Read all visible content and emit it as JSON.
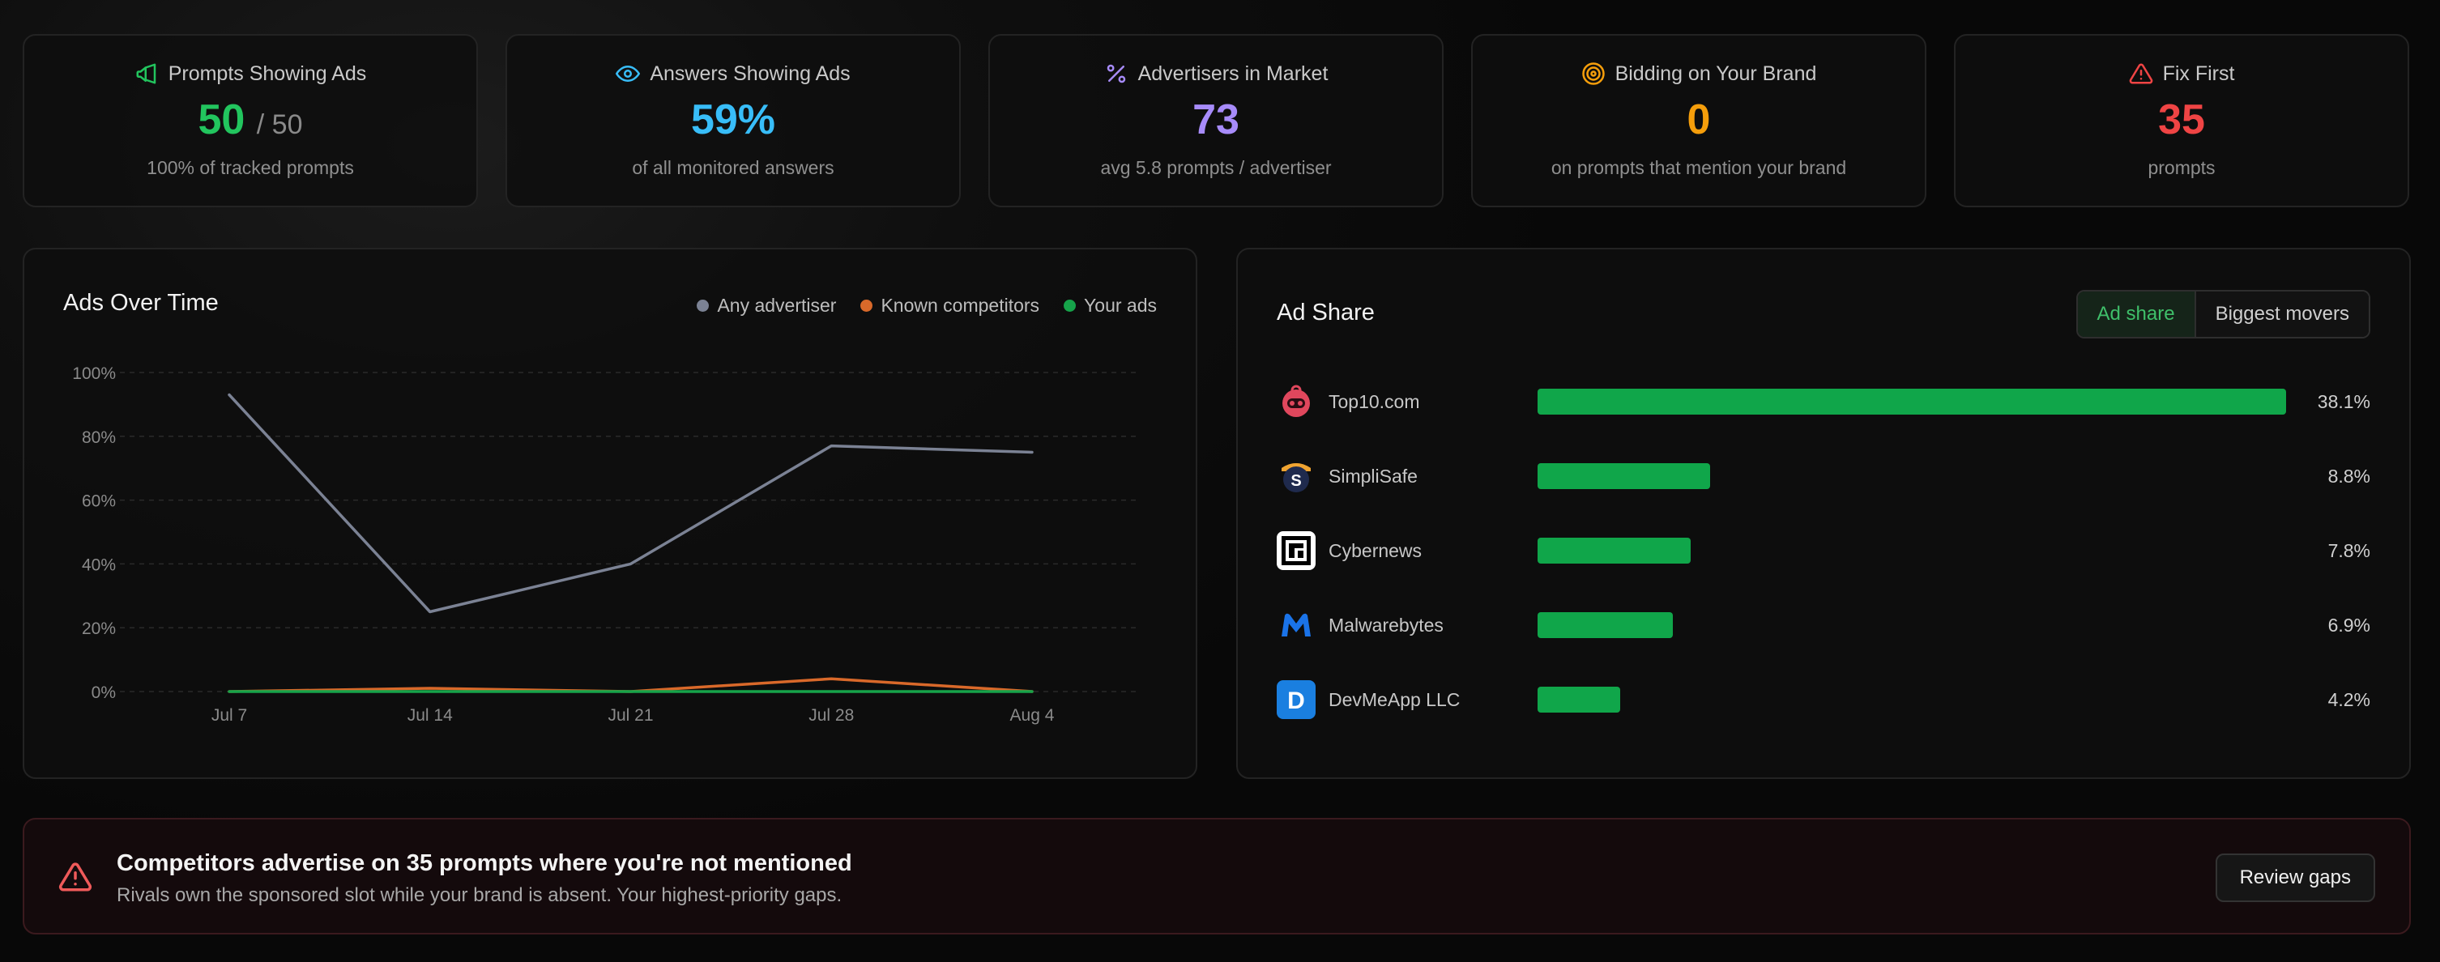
{
  "stats": [
    {
      "label": "Prompts Showing Ads",
      "icon": "megaphone-icon",
      "value": "50",
      "value_suffix": "/ 50",
      "caption": "100% of tracked prompts",
      "color": "#22c55e"
    },
    {
      "label": "Answers Showing Ads",
      "icon": "eye-icon",
      "value": "59%",
      "value_suffix": "",
      "caption": "of all monitored answers",
      "color": "#38bdf8"
    },
    {
      "label": "Advertisers in Market",
      "icon": "percent-icon",
      "value": "73",
      "value_suffix": "",
      "caption": "avg 5.8 prompts / advertiser",
      "color": "#a78bfa"
    },
    {
      "label": "Bidding on Your Brand",
      "icon": "target-icon",
      "value": "0",
      "value_suffix": "",
      "caption": "on prompts that mention your brand",
      "color": "#f59e0b"
    },
    {
      "label": "Fix First",
      "icon": "warning-icon",
      "value": "35",
      "value_suffix": "",
      "caption": "prompts",
      "color": "#ef4444"
    }
  ],
  "chart": {
    "title": "Ads Over Time",
    "legend": [
      {
        "name": "Any advertiser",
        "color": "#7b8294"
      },
      {
        "name": "Known competitors",
        "color": "#d9692a"
      },
      {
        "name": "Your ads",
        "color": "#16a34a"
      }
    ]
  },
  "chart_data": {
    "type": "line",
    "title": "Ads Over Time",
    "x": [
      "Jul 7",
      "Jul 14",
      "Jul 21",
      "Jul 28",
      "Aug 4"
    ],
    "y_ticks": [
      "0%",
      "20%",
      "40%",
      "60%",
      "80%",
      "100%"
    ],
    "ylim": [
      0,
      100
    ],
    "grid": true,
    "legend_position": "top-right",
    "series": [
      {
        "name": "Any advertiser",
        "color": "#7b8294",
        "values": [
          93,
          25,
          40,
          77,
          75
        ]
      },
      {
        "name": "Known competitors",
        "color": "#d9692a",
        "values": [
          0,
          1,
          0,
          4,
          0
        ]
      },
      {
        "name": "Your ads",
        "color": "#16a34a",
        "values": [
          0,
          0,
          0,
          0,
          0
        ]
      }
    ]
  },
  "ad_share": {
    "title": "Ad Share",
    "tabs": [
      "Ad share",
      "Biggest movers"
    ],
    "rows": [
      {
        "name": "Top10.com",
        "pct": "38.1%",
        "value": 38.1,
        "logo": "top10-logo-icon"
      },
      {
        "name": "SimpliSafe",
        "pct": "8.8%",
        "value": 8.8,
        "logo": "simplisafe-logo-icon"
      },
      {
        "name": "Cybernews",
        "pct": "7.8%",
        "value": 7.8,
        "logo": "cybernews-logo-icon"
      },
      {
        "name": "Malwarebytes",
        "pct": "6.9%",
        "value": 6.9,
        "logo": "malwarebytes-logo-icon"
      },
      {
        "name": "DevMeApp LLC",
        "pct": "4.2%",
        "value": 4.2,
        "logo": "devmeapp-logo-icon"
      }
    ]
  },
  "alert": {
    "title": "Competitors advertise on 35 prompts where you're not mentioned",
    "text": "Rivals own the sponsored slot while your brand is absent. Your highest-priority gaps.",
    "button": "Review gaps",
    "color": "#ef4444"
  }
}
